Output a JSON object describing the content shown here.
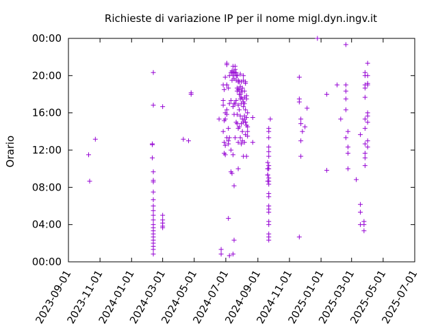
{
  "chart_data": {
    "type": "scatter",
    "title": "Richieste di variazione IP per il nome migl.dyn.ingv.it",
    "xlabel": "",
    "ylabel": "Orario",
    "marker": "+",
    "colors": {
      "points": "#9400d3",
      "axes": "#000000",
      "background": "#ffffff"
    },
    "grid": false,
    "xlim": [
      "2023-09-01",
      "2025-07-01"
    ],
    "ylim": [
      "00:00",
      "24:00"
    ],
    "x_tick_labels": [
      "2023-09-01",
      "2023-11-01",
      "2024-01-01",
      "2024-03-01",
      "2024-05-01",
      "2024-07-01",
      "2024-09-01",
      "2024-11-01",
      "2025-01-01",
      "2025-03-01",
      "2025-05-01",
      "2025-07-01"
    ],
    "y_tick_labels": [
      "00:00",
      "04:00",
      "08:00",
      "12:00",
      "16:00",
      "20:00",
      "00:00"
    ],
    "points": [
      [
        "2023-10-10",
        "11:30"
      ],
      [
        "2023-10-12",
        "08:40"
      ],
      [
        "2023-10-23",
        "13:10"
      ],
      [
        "2024-02-10",
        "12:40"
      ],
      [
        "2024-02-10",
        "12:35"
      ],
      [
        "2024-02-10",
        "11:10"
      ],
      [
        "2024-02-12",
        "20:20"
      ],
      [
        "2024-02-12",
        "16:50"
      ],
      [
        "2024-02-12",
        "09:40"
      ],
      [
        "2024-02-12",
        "08:45"
      ],
      [
        "2024-02-12",
        "08:35"
      ],
      [
        "2024-02-12",
        "07:30"
      ],
      [
        "2024-02-12",
        "06:40"
      ],
      [
        "2024-02-12",
        "06:00"
      ],
      [
        "2024-02-12",
        "05:30"
      ],
      [
        "2024-02-12",
        "05:00"
      ],
      [
        "2024-02-12",
        "04:30"
      ],
      [
        "2024-02-12",
        "04:00"
      ],
      [
        "2024-02-12",
        "03:40"
      ],
      [
        "2024-02-12",
        "03:20"
      ],
      [
        "2024-02-12",
        "03:00"
      ],
      [
        "2024-02-12",
        "02:40"
      ],
      [
        "2024-02-12",
        "02:20"
      ],
      [
        "2024-02-12",
        "02:00"
      ],
      [
        "2024-02-12",
        "01:40"
      ],
      [
        "2024-02-12",
        "01:20"
      ],
      [
        "2024-02-12",
        "00:50"
      ],
      [
        "2024-03-01",
        "16:40"
      ],
      [
        "2024-03-01",
        "05:00"
      ],
      [
        "2024-03-01",
        "04:30"
      ],
      [
        "2024-03-01",
        "04:10"
      ],
      [
        "2024-03-01",
        "03:50"
      ],
      [
        "2024-03-01",
        "03:40"
      ],
      [
        "2024-04-10",
        "13:10"
      ],
      [
        "2024-04-20",
        "13:00"
      ],
      [
        "2024-04-25",
        "18:10"
      ],
      [
        "2024-04-25",
        "18:00"
      ],
      [
        "2024-06-18",
        "15:20"
      ],
      [
        "2024-06-22",
        "01:20"
      ],
      [
        "2024-06-22",
        "00:50"
      ],
      [
        "2024-06-26",
        "19:00"
      ],
      [
        "2024-06-26",
        "17:20"
      ],
      [
        "2024-06-26",
        "16:50"
      ],
      [
        "2024-06-26",
        "14:00"
      ],
      [
        "2024-06-28",
        "18:30"
      ],
      [
        "2024-06-28",
        "15:10"
      ],
      [
        "2024-06-28",
        "12:50"
      ],
      [
        "2024-06-28",
        "11:40"
      ],
      [
        "2024-06-30",
        "19:50"
      ],
      [
        "2024-06-30",
        "16:00"
      ],
      [
        "2024-06-30",
        "14:80"
      ],
      [
        "2024-06-30",
        "12:30"
      ],
      [
        "2024-06-30",
        "11:30"
      ],
      [
        "2024-07-03",
        "21:20"
      ],
      [
        "2024-07-03",
        "21:10"
      ],
      [
        "2024-07-03",
        "19:00"
      ],
      [
        "2024-07-03",
        "18:60"
      ],
      [
        "2024-07-03",
        "16:20"
      ],
      [
        "2024-07-03",
        "15:50"
      ],
      [
        "2024-07-03",
        "12:80"
      ],
      [
        "2024-07-06",
        "18:40"
      ],
      [
        "2024-07-06",
        "13:80"
      ],
      [
        "2024-07-06",
        "13:00"
      ],
      [
        "2024-07-06",
        "12:40"
      ],
      [
        "2024-07-06",
        "04:40"
      ],
      [
        "2024-07-08",
        "19:60"
      ],
      [
        "2024-07-08",
        "17:00"
      ],
      [
        "2024-07-08",
        "13:20"
      ],
      [
        "2024-07-08",
        "00:40"
      ],
      [
        "2024-07-11",
        "19:80"
      ],
      [
        "2024-07-11",
        "17:20"
      ],
      [
        "2024-07-11",
        "12:00"
      ],
      [
        "2024-07-11",
        "09:40"
      ],
      [
        "2024-07-13",
        "20:30"
      ],
      [
        "2024-07-13",
        "19:80"
      ],
      [
        "2024-07-13",
        "18:90"
      ],
      [
        "2024-07-13",
        "09:30"
      ],
      [
        "2024-07-15",
        "20:60"
      ],
      [
        "2024-07-15",
        "20:20"
      ],
      [
        "2024-07-15",
        "19:60"
      ],
      [
        "2024-07-15",
        "16:40"
      ],
      [
        "2024-07-15",
        "11:30"
      ],
      [
        "2024-07-15",
        "00:50"
      ],
      [
        "2024-07-17",
        "20:20"
      ],
      [
        "2024-07-17",
        "19:80"
      ],
      [
        "2024-07-17",
        "19:40"
      ],
      [
        "2024-07-17",
        "17:00"
      ],
      [
        "2024-07-17",
        "15:50"
      ],
      [
        "2024-07-17",
        "08:10"
      ],
      [
        "2024-07-17",
        "02:20"
      ],
      [
        "2024-07-19",
        "21:00"
      ],
      [
        "2024-07-19",
        "20:40"
      ],
      [
        "2024-07-19",
        "19:80"
      ],
      [
        "2024-07-19",
        "17:00"
      ],
      [
        "2024-07-19",
        "12:80"
      ],
      [
        "2024-07-21",
        "20:20"
      ],
      [
        "2024-07-21",
        "19:60"
      ],
      [
        "2024-07-21",
        "18:90"
      ],
      [
        "2024-07-21",
        "16:80"
      ],
      [
        "2024-07-21",
        "15:00"
      ],
      [
        "2024-07-23",
        "20:00"
      ],
      [
        "2024-07-23",
        "19:60"
      ],
      [
        "2024-07-23",
        "18:40"
      ],
      [
        "2024-07-23",
        "17:80"
      ],
      [
        "2024-07-23",
        "15:50"
      ],
      [
        "2024-07-23",
        "14:50"
      ],
      [
        "2024-07-25",
        "19:30"
      ],
      [
        "2024-07-25",
        "18:80"
      ],
      [
        "2024-07-25",
        "17:90"
      ],
      [
        "2024-07-25",
        "16:50"
      ],
      [
        "2024-07-25",
        "14:20"
      ],
      [
        "2024-07-25",
        "12:50"
      ],
      [
        "2024-07-25",
        "09:60"
      ],
      [
        "2024-07-27",
        "18:80"
      ],
      [
        "2024-07-27",
        "18:30"
      ],
      [
        "2024-07-27",
        "17:60"
      ],
      [
        "2024-07-27",
        "16:20"
      ],
      [
        "2024-07-27",
        "13:90"
      ],
      [
        "2024-07-29",
        "19:70"
      ],
      [
        "2024-07-29",
        "18:50"
      ],
      [
        "2024-07-29",
        "18:00"
      ],
      [
        "2024-07-29",
        "17:30"
      ],
      [
        "2024-07-29",
        "15:40"
      ],
      [
        "2024-07-29",
        "13:20"
      ],
      [
        "2024-07-31",
        "18:80"
      ],
      [
        "2024-07-31",
        "18:20"
      ],
      [
        "2024-07-31",
        "17:40"
      ],
      [
        "2024-07-31",
        "16:60"
      ],
      [
        "2024-07-31",
        "14:50"
      ],
      [
        "2024-07-31",
        "12:40"
      ],
      [
        "2024-08-02",
        "18:40"
      ],
      [
        "2024-08-02",
        "17:80"
      ],
      [
        "2024-08-02",
        "16:90"
      ],
      [
        "2024-08-02",
        "15:20"
      ],
      [
        "2024-08-02",
        "14:00"
      ],
      [
        "2024-08-02",
        "12:60"
      ],
      [
        "2024-08-04",
        "19:60"
      ],
      [
        "2024-08-04",
        "18:90"
      ],
      [
        "2024-08-04",
        "17:10"
      ],
      [
        "2024-08-04",
        "16:40"
      ],
      [
        "2024-08-04",
        "15:00"
      ],
      [
        "2024-08-04",
        "10:80"
      ],
      [
        "2024-08-06",
        "18:20"
      ],
      [
        "2024-08-06",
        "17:40"
      ],
      [
        "2024-08-06",
        "16:60"
      ],
      [
        "2024-08-06",
        "15:40"
      ],
      [
        "2024-08-06",
        "14:80"
      ],
      [
        "2024-08-06",
        "12:50"
      ],
      [
        "2024-08-08",
        "19:20"
      ],
      [
        "2024-08-08",
        "18:70"
      ],
      [
        "2024-08-08",
        "16:20"
      ],
      [
        "2024-08-08",
        "15:00"
      ],
      [
        "2024-08-08",
        "14:60"
      ],
      [
        "2024-08-08",
        "13:40"
      ],
      [
        "2024-08-10",
        "17:50"
      ],
      [
        "2024-08-10",
        "16:90"
      ],
      [
        "2024-08-10",
        "15:30"
      ],
      [
        "2024-08-10",
        "14:40"
      ],
      [
        "2024-08-10",
        "11:20"
      ],
      [
        "2024-08-12",
        "16:00"
      ],
      [
        "2024-08-12",
        "14:30"
      ],
      [
        "2024-08-12",
        "14:00"
      ],
      [
        "2024-08-12",
        "12:90"
      ],
      [
        "2024-08-22",
        "15:30"
      ],
      [
        "2024-08-22",
        "12:50"
      ],
      [
        "2024-09-20",
        "10:40"
      ],
      [
        "2024-09-20",
        "10:00"
      ],
      [
        "2024-09-20",
        "09:60"
      ],
      [
        "2024-09-20",
        "09:20"
      ],
      [
        "2024-09-20",
        "08:80"
      ],
      [
        "2024-09-20",
        "08:40"
      ],
      [
        "2024-09-22",
        "14:20"
      ],
      [
        "2024-09-22",
        "13:60"
      ],
      [
        "2024-09-22",
        "12:80"
      ],
      [
        "2024-09-22",
        "12:20"
      ],
      [
        "2024-09-22",
        "11:50"
      ],
      [
        "2024-09-22",
        "10:80"
      ],
      [
        "2024-09-22",
        "10:20"
      ],
      [
        "2024-09-22",
        "09:60"
      ],
      [
        "2024-09-22",
        "09:00"
      ],
      [
        "2024-09-22",
        "08:40"
      ],
      [
        "2024-09-22",
        "07:80"
      ],
      [
        "2024-09-22",
        "07:20"
      ],
      [
        "2024-09-22",
        "06:60"
      ],
      [
        "2024-09-22",
        "06:00"
      ],
      [
        "2024-09-22",
        "05:40"
      ],
      [
        "2024-09-22",
        "04:80"
      ],
      [
        "2024-09-22",
        "04:20"
      ],
      [
        "2024-09-22",
        "03:60"
      ],
      [
        "2024-09-22",
        "03:00"
      ],
      [
        "2024-09-22",
        "02:40"
      ],
      [
        "2024-09-22",
        "01:80"
      ],
      [
        "2024-09-25",
        "15:20"
      ],
      [
        "2024-11-20",
        "19:50"
      ],
      [
        "2024-11-20",
        "17:10"
      ],
      [
        "2024-11-20",
        "16:90"
      ],
      [
        "2024-11-20",
        "02:40"
      ],
      [
        "2024-11-23",
        "14:80"
      ],
      [
        "2024-11-23",
        "14:50"
      ],
      [
        "2024-11-23",
        "12:60"
      ],
      [
        "2024-11-23",
        "11:20"
      ],
      [
        "2024-11-26",
        "13:60"
      ],
      [
        "2024-12-01",
        "14:30"
      ],
      [
        "2024-12-05",
        "16:30"
      ],
      [
        "2024-12-25",
        "23:80"
      ],
      [
        "2025-01-12",
        "17:60"
      ],
      [
        "2025-01-12",
        "09:50"
      ],
      [
        "2025-02-01",
        "19:00"
      ],
      [
        "2025-02-08",
        "14:80"
      ],
      [
        "2025-02-18",
        "22:80"
      ],
      [
        "2025-02-18",
        "18:60"
      ],
      [
        "2025-02-18",
        "17:80"
      ],
      [
        "2025-02-18",
        "16:90"
      ],
      [
        "2025-02-18",
        "15:80"
      ],
      [
        "2025-02-18",
        "12:80"
      ],
      [
        "2025-02-22",
        "13:60"
      ],
      [
        "2025-02-22",
        "12:20"
      ],
      [
        "2025-02-22",
        "11:40"
      ],
      [
        "2025-02-22",
        "10:00"
      ],
      [
        "2025-03-10",
        "08:50"
      ],
      [
        "2025-03-18",
        "13:40"
      ],
      [
        "2025-03-18",
        "06:10"
      ],
      [
        "2025-03-18",
        "05:20"
      ],
      [
        "2025-03-18",
        "04:00"
      ],
      [
        "2025-03-25",
        "04:20"
      ],
      [
        "2025-03-25",
        "03:60"
      ],
      [
        "2025-03-25",
        "03:20"
      ],
      [
        "2025-03-27",
        "20:20"
      ],
      [
        "2025-03-27",
        "19:60"
      ],
      [
        "2025-03-27",
        "19:00"
      ],
      [
        "2025-03-27",
        "18:40"
      ],
      [
        "2025-03-27",
        "17:40"
      ],
      [
        "2025-03-27",
        "14:80"
      ],
      [
        "2025-03-27",
        "13:80"
      ],
      [
        "2025-03-27",
        "12:40"
      ],
      [
        "2025-03-27",
        "11:40"
      ],
      [
        "2025-03-27",
        "11:10"
      ],
      [
        "2025-03-27",
        "09:80"
      ],
      [
        "2025-04-01",
        "20:80"
      ],
      [
        "2025-04-01",
        "20:00"
      ],
      [
        "2025-04-01",
        "19:00"
      ],
      [
        "2025-04-01",
        "18:70"
      ],
      [
        "2025-04-01",
        "16:00"
      ],
      [
        "2025-04-01",
        "15:40"
      ],
      [
        "2025-04-01",
        "14:60"
      ],
      [
        "2025-04-01",
        "12:60"
      ],
      [
        "2025-04-01",
        "11:80"
      ]
    ]
  }
}
